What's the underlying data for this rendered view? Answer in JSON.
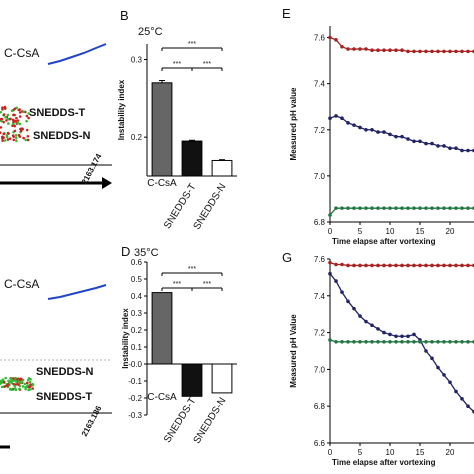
{
  "figure": {
    "left_top": {
      "labels": [
        "C-CsA",
        "SNEDDS-T",
        "SNEDDS-N"
      ],
      "tick": "2163.174",
      "colors": {
        "C-CsA": "#2244cc",
        "SNEDDS-T": "#cc2222",
        "SNEDDS-N": "#33bb33"
      }
    },
    "left_bottom": {
      "labels": [
        "C-CsA",
        "SNEDDS-N",
        "SNEDDS-T"
      ],
      "tick": "2163.186"
    }
  },
  "chart_data": [
    {
      "panel": "B",
      "type": "bar",
      "temperature": "25°C",
      "categories": [
        "C-CsA",
        "SNEDDS-T",
        "SNEDDS-N"
      ],
      "values": [
        0.27,
        0.195,
        0.17
      ],
      "errors": [
        0.003,
        0.001,
        0.001
      ],
      "bar_colors": [
        "#666666",
        "#111111",
        "#ffffff"
      ],
      "category_colors": [
        "#2244cc",
        "#cc2222",
        "#33bb33"
      ],
      "ylabel": "Instability index",
      "ylim": [
        0.15,
        0.32
      ],
      "yticks": [
        0.2,
        0.3
      ],
      "ytick_labels": [
        "0.2",
        "0.3"
      ],
      "significance": [
        "***",
        "***",
        "***"
      ]
    },
    {
      "panel": "D",
      "type": "bar",
      "temperature": "35°C",
      "categories": [
        "C-CsA",
        "SNEDDS-T",
        "SNEDDS-N"
      ],
      "values": [
        0.42,
        -0.19,
        -0.17
      ],
      "bar_colors": [
        "#666666",
        "#111111",
        "#ffffff"
      ],
      "category_colors": [
        "#2244cc",
        "#cc2222",
        "#33bb33"
      ],
      "ylabel": "Instability index",
      "ylim": [
        -0.3,
        0.6
      ],
      "yticks": [
        -0.3,
        -0.2,
        -0.1,
        0.0,
        0.1,
        0.2,
        0.3,
        0.4,
        0.5,
        0.6
      ],
      "ytick_labels": [
        "-0.3",
        "-0.2",
        "-0.1",
        "-0.0",
        "0.1",
        "0.2",
        "0.3",
        "0.4",
        "0.5",
        "0.6"
      ],
      "significance": [
        "***",
        "***",
        "***"
      ]
    },
    {
      "panel": "E",
      "type": "line",
      "xlabel": "Time elapse after vortexing",
      "ylabel": "Measured pH value",
      "xlim": [
        0,
        24
      ],
      "ylim": [
        6.8,
        7.65
      ],
      "xticks": [
        0,
        5,
        10,
        15,
        20
      ],
      "yticks": [
        6.8,
        7.0,
        7.2,
        7.4,
        7.6
      ],
      "ytick_labels": [
        "6.8",
        "7.0",
        "7.2",
        "7.4",
        "7.6"
      ],
      "series": [
        {
          "color": "#aa2222",
          "x": [
            0,
            1,
            2,
            3,
            4,
            5,
            6,
            7,
            8,
            9,
            10,
            11,
            12,
            13,
            14,
            15,
            16,
            17,
            18,
            19,
            20,
            21,
            22,
            23,
            24
          ],
          "y": [
            7.6,
            7.59,
            7.56,
            7.55,
            7.55,
            7.55,
            7.55,
            7.545,
            7.545,
            7.545,
            7.545,
            7.545,
            7.545,
            7.54,
            7.54,
            7.54,
            7.54,
            7.54,
            7.54,
            7.54,
            7.54,
            7.54,
            7.54,
            7.54,
            7.54
          ]
        },
        {
          "color": "#222266",
          "x": [
            0,
            1,
            2,
            3,
            4,
            5,
            6,
            7,
            8,
            9,
            10,
            11,
            12,
            13,
            14,
            15,
            16,
            17,
            18,
            19,
            20,
            21,
            22,
            23,
            24
          ],
          "y": [
            7.25,
            7.26,
            7.25,
            7.23,
            7.22,
            7.21,
            7.2,
            7.2,
            7.19,
            7.19,
            7.18,
            7.17,
            7.17,
            7.16,
            7.15,
            7.15,
            7.14,
            7.14,
            7.13,
            7.13,
            7.12,
            7.12,
            7.11,
            7.11,
            7.11
          ]
        },
        {
          "color": "#227744",
          "x": [
            0,
            1,
            2,
            3,
            4,
            5,
            6,
            7,
            8,
            9,
            10,
            11,
            12,
            13,
            14,
            15,
            16,
            17,
            18,
            19,
            20,
            21,
            22,
            23,
            24
          ],
          "y": [
            6.83,
            6.86,
            6.86,
            6.86,
            6.86,
            6.86,
            6.86,
            6.86,
            6.86,
            6.86,
            6.86,
            6.86,
            6.86,
            6.86,
            6.86,
            6.86,
            6.86,
            6.86,
            6.86,
            6.86,
            6.86,
            6.86,
            6.86,
            6.86,
            6.86
          ]
        }
      ]
    },
    {
      "panel": "G",
      "type": "line",
      "xlabel": "Time elapse after vortexing",
      "ylabel": "Measured pH Value",
      "xlim": [
        0,
        24
      ],
      "ylim": [
        6.6,
        7.6
      ],
      "xticks": [
        0,
        5,
        10,
        15,
        20
      ],
      "yticks": [
        6.6,
        6.8,
        7.0,
        7.2,
        7.4,
        7.6
      ],
      "ytick_labels": [
        "6.6",
        "6.8",
        "7.0",
        "7.2",
        "7.4",
        "7.6"
      ],
      "series": [
        {
          "color": "#aa2222",
          "x": [
            0,
            1,
            2,
            3,
            4,
            5,
            6,
            7,
            8,
            9,
            10,
            11,
            12,
            13,
            14,
            15,
            16,
            17,
            18,
            19,
            20,
            21,
            22,
            23,
            24
          ],
          "y": [
            7.58,
            7.57,
            7.57,
            7.565,
            7.565,
            7.565,
            7.565,
            7.565,
            7.565,
            7.565,
            7.565,
            7.565,
            7.565,
            7.565,
            7.565,
            7.565,
            7.565,
            7.565,
            7.565,
            7.565,
            7.565,
            7.565,
            7.565,
            7.565,
            7.565
          ]
        },
        {
          "color": "#222266",
          "x": [
            0,
            1,
            2,
            3,
            4,
            5,
            6,
            7,
            8,
            9,
            10,
            11,
            12,
            13,
            14,
            15,
            16,
            17,
            18,
            19,
            20,
            21,
            22,
            23,
            24
          ],
          "y": [
            7.52,
            7.48,
            7.42,
            7.37,
            7.33,
            7.29,
            7.26,
            7.24,
            7.22,
            7.2,
            7.19,
            7.18,
            7.18,
            7.18,
            7.19,
            7.16,
            7.1,
            7.06,
            7.01,
            6.97,
            6.93,
            6.88,
            6.84,
            6.8,
            6.77
          ]
        },
        {
          "color": "#227744",
          "x": [
            0,
            1,
            2,
            3,
            4,
            5,
            6,
            7,
            8,
            9,
            10,
            11,
            12,
            13,
            14,
            15,
            16,
            17,
            18,
            19,
            20,
            21,
            22,
            23,
            24
          ],
          "y": [
            7.16,
            7.15,
            7.15,
            7.15,
            7.15,
            7.15,
            7.15,
            7.15,
            7.15,
            7.15,
            7.15,
            7.15,
            7.15,
            7.15,
            7.15,
            7.15,
            7.15,
            7.15,
            7.15,
            7.15,
            7.15,
            7.15,
            7.15,
            7.15,
            7.15
          ]
        }
      ]
    }
  ]
}
